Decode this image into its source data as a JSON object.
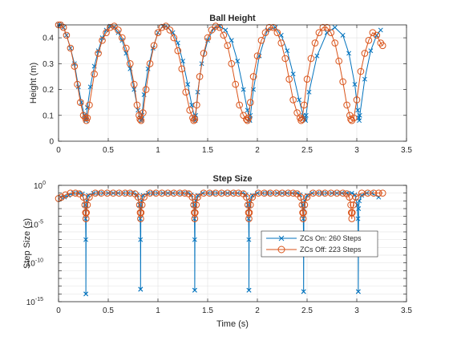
{
  "chart_data": [
    {
      "type": "line",
      "title": "Ball Height",
      "xlabel": "",
      "ylabel": "Height (m)",
      "xlim": [
        0,
        3.5
      ],
      "ylim": [
        0,
        0.45
      ],
      "xticks": [
        "0",
        "0.5",
        "1",
        "1.5",
        "2",
        "2.5",
        "3",
        "3.5"
      ],
      "yticks": [
        "0",
        "0.1",
        "0.2",
        "0.3",
        "0.4"
      ],
      "grid": true,
      "series": [
        {
          "name": "ZCs On: 260 Steps",
          "color": "#0072BD",
          "marker": "x",
          "x": [
            0,
            0.02,
            0.05,
            0.08,
            0.12,
            0.16,
            0.2,
            0.23,
            0.26,
            0.27,
            0.275,
            0.28,
            0.29,
            0.32,
            0.36,
            0.4,
            0.44,
            0.48,
            0.52,
            0.56,
            0.6,
            0.64,
            0.68,
            0.72,
            0.76,
            0.8,
            0.82,
            0.83,
            0.835,
            0.84,
            0.86,
            0.9,
            0.95,
            1.0,
            1.05,
            1.1,
            1.15,
            1.2,
            1.25,
            1.3,
            1.34,
            1.37,
            1.375,
            1.38,
            1.4,
            1.44,
            1.5,
            1.56,
            1.62,
            1.68,
            1.74,
            1.8,
            1.86,
            1.9,
            1.92,
            1.925,
            1.93,
            1.96,
            2.02,
            2.1,
            2.18,
            2.24,
            2.3,
            2.36,
            2.42,
            2.46,
            2.48,
            2.485,
            2.49,
            2.52,
            2.6,
            2.7,
            2.78,
            2.86,
            2.92,
            2.98,
            3.01,
            3.02,
            3.025,
            3.03,
            3.08,
            3.14,
            3.2,
            3.24
          ],
          "y": [
            0.45,
            0.45,
            0.44,
            0.41,
            0.36,
            0.3,
            0.21,
            0.15,
            0.1,
            0.085,
            0.08,
            0.09,
            0.13,
            0.21,
            0.29,
            0.35,
            0.4,
            0.43,
            0.445,
            0.44,
            0.42,
            0.39,
            0.34,
            0.28,
            0.2,
            0.12,
            0.09,
            0.08,
            0.085,
            0.1,
            0.18,
            0.28,
            0.36,
            0.42,
            0.445,
            0.44,
            0.42,
            0.38,
            0.31,
            0.22,
            0.14,
            0.09,
            0.08,
            0.1,
            0.19,
            0.3,
            0.39,
            0.435,
            0.445,
            0.43,
            0.39,
            0.31,
            0.2,
            0.12,
            0.085,
            0.08,
            0.1,
            0.2,
            0.33,
            0.43,
            0.44,
            0.41,
            0.35,
            0.26,
            0.16,
            0.1,
            0.085,
            0.08,
            0.1,
            0.19,
            0.33,
            0.42,
            0.44,
            0.41,
            0.34,
            0.22,
            0.12,
            0.09,
            0.08,
            0.1,
            0.24,
            0.35,
            0.41,
            0.43
          ]
        },
        {
          "name": "ZCs Off: 223 Steps",
          "color": "#D95319",
          "marker": "o",
          "x": [
            0,
            0.02,
            0.05,
            0.08,
            0.12,
            0.16,
            0.19,
            0.22,
            0.25,
            0.27,
            0.28,
            0.29,
            0.31,
            0.36,
            0.4,
            0.44,
            0.48,
            0.52,
            0.56,
            0.6,
            0.64,
            0.68,
            0.72,
            0.76,
            0.79,
            0.81,
            0.82,
            0.83,
            0.85,
            0.88,
            0.92,
            0.96,
            1.0,
            1.04,
            1.08,
            1.12,
            1.16,
            1.2,
            1.24,
            1.28,
            1.32,
            1.35,
            1.36,
            1.37,
            1.39,
            1.42,
            1.46,
            1.5,
            1.54,
            1.58,
            1.62,
            1.66,
            1.7,
            1.74,
            1.78,
            1.82,
            1.86,
            1.89,
            1.9,
            1.91,
            1.93,
            1.96,
            2.0,
            2.04,
            2.08,
            2.12,
            2.16,
            2.2,
            2.24,
            2.28,
            2.32,
            2.36,
            2.4,
            2.43,
            2.44,
            2.45,
            2.47,
            2.5,
            2.54,
            2.58,
            2.62,
            2.66,
            2.7,
            2.74,
            2.78,
            2.82,
            2.86,
            2.9,
            2.93,
            2.94,
            2.95,
            2.97,
            3.0,
            3.04,
            3.08,
            3.12,
            3.16,
            3.2,
            3.24,
            3.26
          ],
          "y": [
            0.45,
            0.45,
            0.44,
            0.41,
            0.36,
            0.29,
            0.22,
            0.15,
            0.1,
            0.09,
            0.08,
            0.09,
            0.14,
            0.26,
            0.34,
            0.39,
            0.42,
            0.44,
            0.445,
            0.43,
            0.4,
            0.36,
            0.3,
            0.22,
            0.14,
            0.1,
            0.085,
            0.08,
            0.11,
            0.2,
            0.3,
            0.37,
            0.42,
            0.44,
            0.445,
            0.43,
            0.4,
            0.35,
            0.28,
            0.19,
            0.12,
            0.09,
            0.08,
            0.085,
            0.14,
            0.25,
            0.34,
            0.4,
            0.43,
            0.445,
            0.44,
            0.41,
            0.37,
            0.3,
            0.22,
            0.14,
            0.1,
            0.085,
            0.08,
            0.09,
            0.15,
            0.25,
            0.33,
            0.39,
            0.42,
            0.44,
            0.44,
            0.42,
            0.38,
            0.32,
            0.24,
            0.16,
            0.11,
            0.09,
            0.08,
            0.085,
            0.14,
            0.24,
            0.32,
            0.38,
            0.42,
            0.44,
            0.44,
            0.42,
            0.38,
            0.31,
            0.23,
            0.14,
            0.1,
            0.085,
            0.08,
            0.09,
            0.16,
            0.27,
            0.34,
            0.39,
            0.42,
            0.41,
            0.38,
            0.37
          ]
        }
      ]
    },
    {
      "type": "line",
      "title": "Step Size",
      "xlabel": "Time (s)",
      "ylabel": "Step Size (s)",
      "yscale": "log",
      "xlim": [
        0,
        3.5
      ],
      "ylim": [
        1e-15,
        1
      ],
      "xticks": [
        "0",
        "0.5",
        "1",
        "1.5",
        "2",
        "2.5",
        "3",
        "3.5"
      ],
      "yticks_base": [
        "10",
        "10",
        "10",
        "10"
      ],
      "yticks_exp": [
        "-15",
        "-10",
        "-5",
        "0"
      ],
      "grid": true,
      "legend_position": "inside-right",
      "legend": [
        "ZCs On: 260 Steps",
        "ZCs Off: 223 Steps"
      ],
      "series": [
        {
          "name": "ZCs On: 260 Steps",
          "color": "#0072BD",
          "marker": "x",
          "x": [
            0.02,
            0.06,
            0.1,
            0.15,
            0.2,
            0.24,
            0.265,
            0.272,
            0.2745,
            0.275,
            0.2752,
            0.278,
            0.285,
            0.3,
            0.35,
            0.4,
            0.45,
            0.5,
            0.55,
            0.6,
            0.65,
            0.7,
            0.75,
            0.79,
            0.815,
            0.822,
            0.8245,
            0.825,
            0.8252,
            0.828,
            0.835,
            0.85,
            0.9,
            0.95,
            1.0,
            1.05,
            1.1,
            1.15,
            1.2,
            1.25,
            1.3,
            1.335,
            1.36,
            1.367,
            1.3695,
            1.37,
            1.3702,
            1.373,
            1.38,
            1.4,
            1.45,
            1.5,
            1.55,
            1.6,
            1.65,
            1.7,
            1.75,
            1.8,
            1.85,
            1.885,
            1.905,
            1.912,
            1.9145,
            1.915,
            1.9152,
            1.918,
            1.925,
            1.95,
            2.0,
            2.05,
            2.1,
            2.15,
            2.2,
            2.25,
            2.3,
            2.35,
            2.4,
            2.43,
            2.455,
            2.462,
            2.4645,
            2.465,
            2.4652,
            2.468,
            2.475,
            2.5,
            2.55,
            2.6,
            2.65,
            2.7,
            2.75,
            2.8,
            2.85,
            2.9,
            2.95,
            2.98,
            3.005,
            3.012,
            3.0145,
            3.015,
            3.0152,
            3.018,
            3.025,
            3.05,
            3.1,
            3.15,
            3.22
          ],
          "y": [
            0.03,
            0.03,
            0.05,
            0.1,
            0.1,
            0.08,
            0.003,
            5e-05,
            1e-07,
            1e-14,
            1e-14,
            0.001,
            0.01,
            0.05,
            0.1,
            0.1,
            0.1,
            0.1,
            0.1,
            0.1,
            0.1,
            0.1,
            0.1,
            0.06,
            0.003,
            5e-05,
            1e-07,
            4e-14,
            4e-14,
            0.001,
            0.01,
            0.05,
            0.1,
            0.1,
            0.1,
            0.1,
            0.1,
            0.1,
            0.1,
            0.1,
            0.1,
            0.06,
            0.003,
            5e-05,
            1e-07,
            3e-14,
            3e-14,
            0.001,
            0.01,
            0.05,
            0.1,
            0.1,
            0.1,
            0.1,
            0.1,
            0.1,
            0.1,
            0.1,
            0.1,
            0.06,
            0.003,
            5e-05,
            1e-07,
            3e-14,
            3e-14,
            0.001,
            0.01,
            0.05,
            0.1,
            0.1,
            0.1,
            0.1,
            0.1,
            0.1,
            0.1,
            0.1,
            0.1,
            0.06,
            0.003,
            5e-05,
            1e-07,
            2e-14,
            2e-14,
            0.001,
            0.01,
            0.05,
            0.1,
            0.1,
            0.1,
            0.1,
            0.1,
            0.1,
            0.1,
            0.1,
            0.1,
            0.06,
            0.003,
            5e-05,
            1e-07,
            2e-14,
            2e-14,
            0.001,
            0.01,
            0.05,
            0.1,
            0.1,
            0.03
          ]
        },
        {
          "name": "ZCs Off: 223 Steps",
          "color": "#D95319",
          "marker": "o",
          "x": [
            0.0,
            0.03,
            0.07,
            0.12,
            0.17,
            0.21,
            0.25,
            0.265,
            0.272,
            0.276,
            0.28,
            0.29,
            0.31,
            0.37,
            0.43,
            0.49,
            0.55,
            0.61,
            0.67,
            0.72,
            0.77,
            0.8,
            0.815,
            0.822,
            0.826,
            0.83,
            0.84,
            0.86,
            0.92,
            0.98,
            1.04,
            1.1,
            1.16,
            1.22,
            1.27,
            1.31,
            1.345,
            1.36,
            1.366,
            1.37,
            1.374,
            1.385,
            1.4,
            1.46,
            1.52,
            1.58,
            1.64,
            1.7,
            1.76,
            1.81,
            1.86,
            1.89,
            1.905,
            1.911,
            1.915,
            1.919,
            1.93,
            1.95,
            2.01,
            2.07,
            2.13,
            2.19,
            2.25,
            2.31,
            2.36,
            2.4,
            2.435,
            2.45,
            2.456,
            2.46,
            2.464,
            2.475,
            2.5,
            2.56,
            2.62,
            2.68,
            2.74,
            2.8,
            2.86,
            2.9,
            2.925,
            2.94,
            2.946,
            2.95,
            2.954,
            2.965,
            2.99,
            3.05,
            3.11,
            3.17,
            3.22,
            3.26
          ],
          "y": [
            0.02,
            0.03,
            0.06,
            0.1,
            0.1,
            0.08,
            0.03,
            0.003,
            0.0003,
            5e-05,
            0.0003,
            0.003,
            0.03,
            0.1,
            0.1,
            0.1,
            0.1,
            0.1,
            0.1,
            0.1,
            0.08,
            0.03,
            0.003,
            0.0003,
            5e-05,
            0.0003,
            0.003,
            0.03,
            0.1,
            0.1,
            0.1,
            0.1,
            0.1,
            0.1,
            0.1,
            0.08,
            0.03,
            0.003,
            0.0003,
            5e-05,
            0.0003,
            0.003,
            0.03,
            0.1,
            0.1,
            0.1,
            0.1,
            0.1,
            0.1,
            0.1,
            0.08,
            0.03,
            0.003,
            0.0003,
            5e-05,
            0.0003,
            0.003,
            0.03,
            0.1,
            0.1,
            0.1,
            0.1,
            0.1,
            0.1,
            0.1,
            0.08,
            0.03,
            0.003,
            0.0003,
            5e-05,
            0.0003,
            0.003,
            0.03,
            0.1,
            0.1,
            0.1,
            0.1,
            0.1,
            0.1,
            0.08,
            0.03,
            0.003,
            0.0003,
            5e-05,
            0.0003,
            0.003,
            0.03,
            0.1,
            0.1,
            0.1,
            0.1,
            0.1
          ]
        }
      ]
    }
  ]
}
